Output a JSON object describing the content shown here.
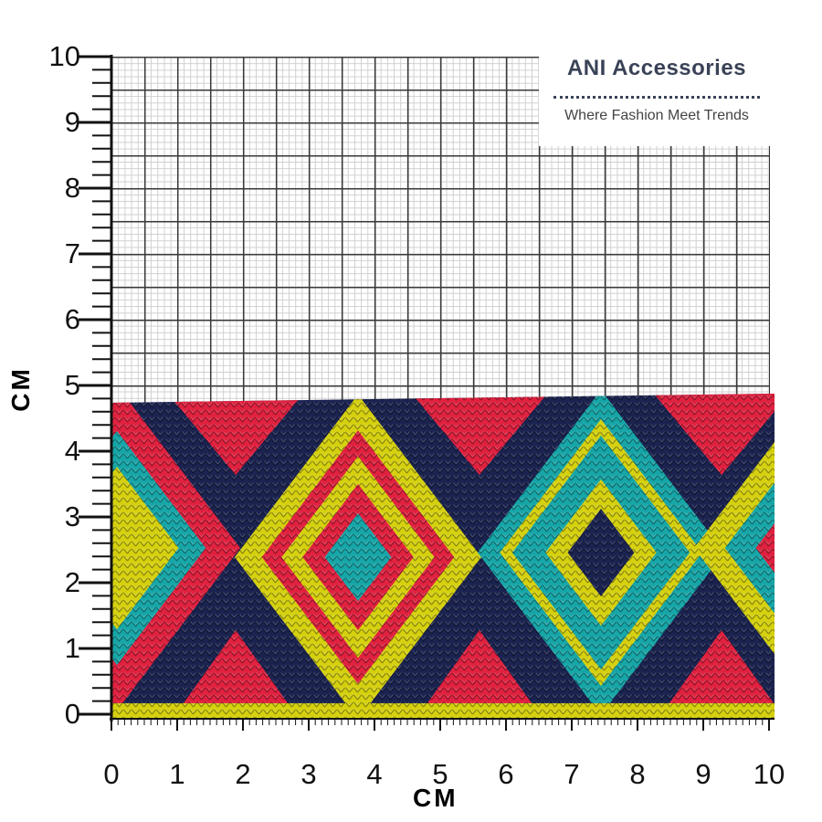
{
  "logo": {
    "title": "ANI Accessories",
    "tagline": "Where Fashion Meet Trends"
  },
  "axes": {
    "y_unit": "CM",
    "x_unit": "CM",
    "y_ticks": [
      "10",
      "9",
      "8",
      "7",
      "6",
      "5",
      "4",
      "3",
      "2",
      "1",
      "0"
    ],
    "x_ticks": [
      "0",
      "1",
      "2",
      "3",
      "4",
      "5",
      "6",
      "7",
      "8",
      "9",
      "10"
    ]
  },
  "colors": {
    "navy": "#1b2350",
    "red": "#e0213f",
    "teal": "#17a6a8",
    "yellow": "#d6d10f"
  }
}
